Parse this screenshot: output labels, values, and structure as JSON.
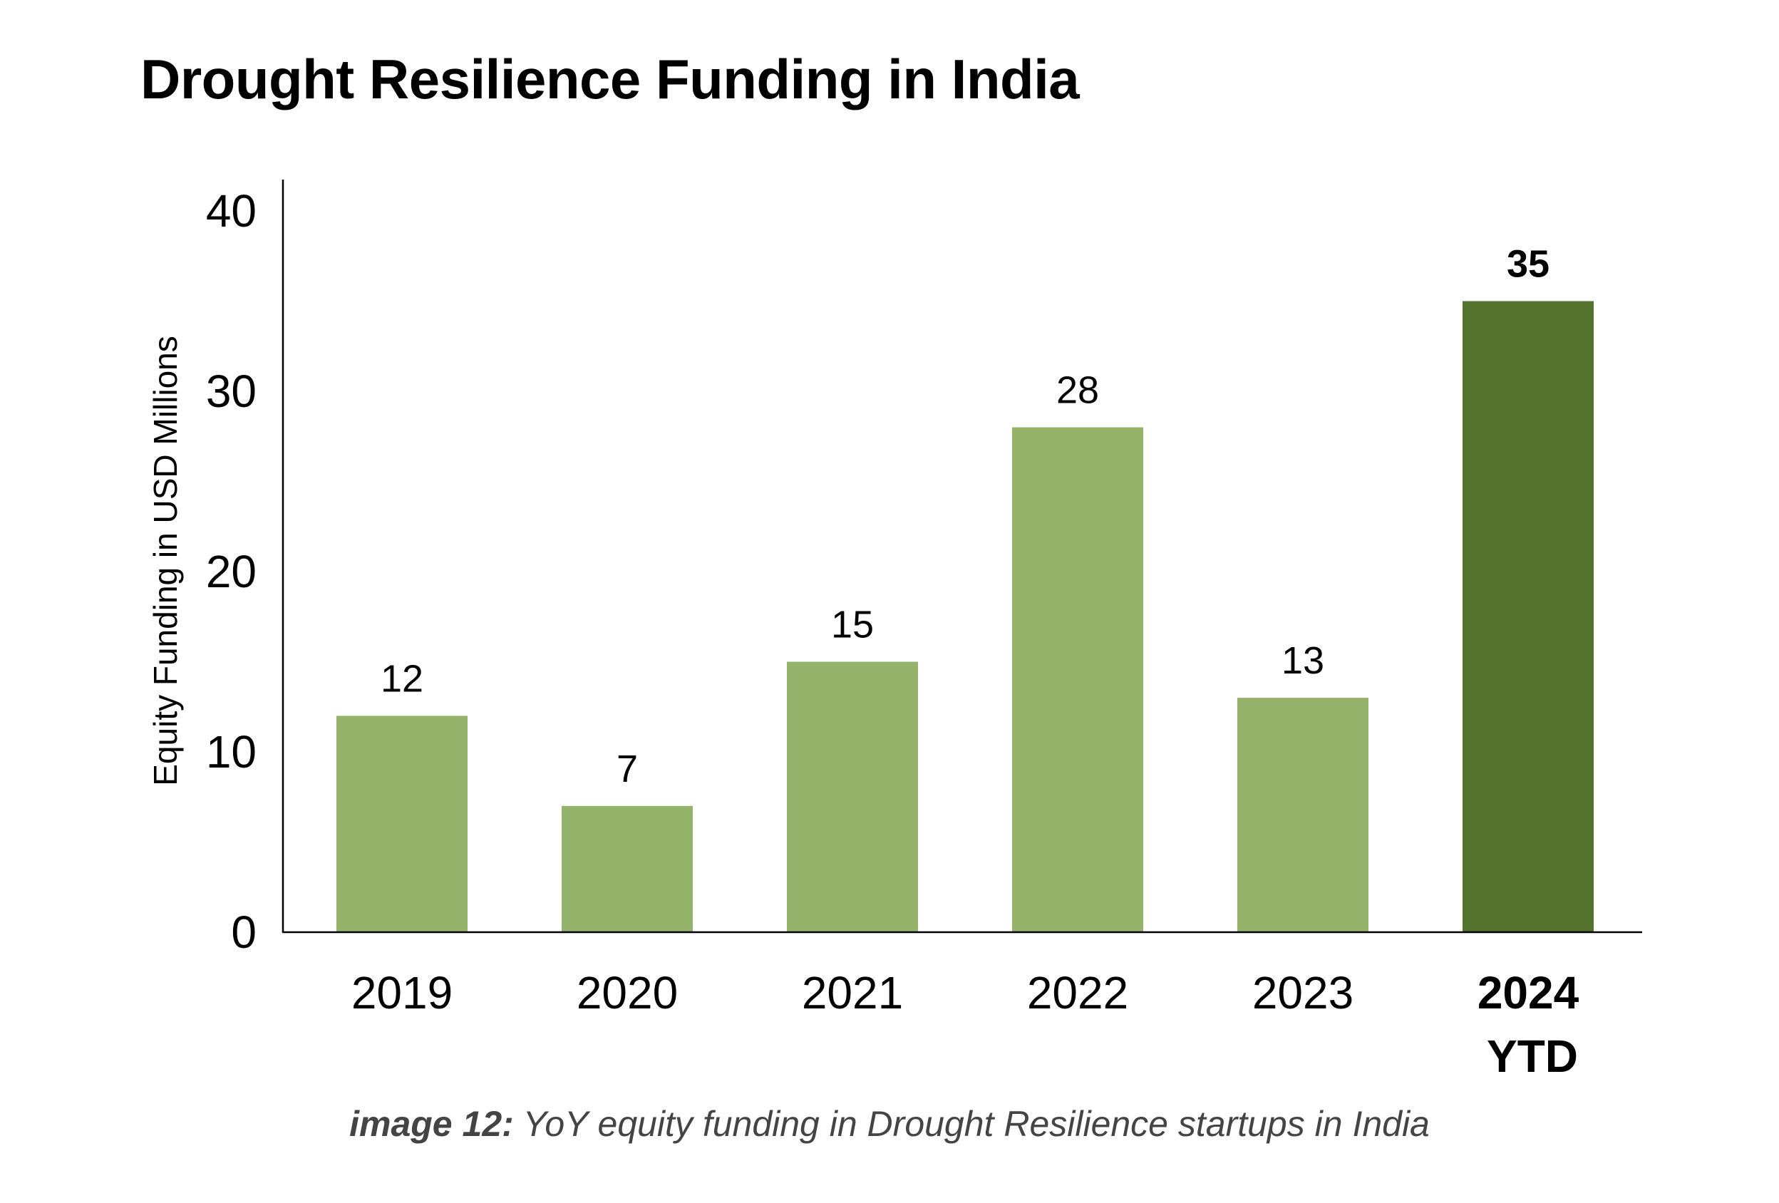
{
  "chart_data": {
    "type": "bar",
    "title": "Drought Resilience Funding in India",
    "xlabel": "",
    "ylabel": "Equity Funding in USD Millions",
    "ylim": [
      0,
      40
    ],
    "yticks": [
      0,
      10,
      20,
      30,
      40
    ],
    "grid": false,
    "legend": null,
    "categories": [
      {
        "label": "2019",
        "label_line2": "",
        "bold": false
      },
      {
        "label": "2020",
        "label_line2": "",
        "bold": false
      },
      {
        "label": "2021",
        "label_line2": "",
        "bold": false
      },
      {
        "label": "2022",
        "label_line2": "",
        "bold": false
      },
      {
        "label": "2023",
        "label_line2": "",
        "bold": false
      },
      {
        "label": "2024",
        "label_line2": "YTD",
        "bold": true
      }
    ],
    "values": [
      12,
      7,
      15,
      28,
      13,
      35
    ],
    "data_labels": [
      "12",
      "7",
      "15",
      "28",
      "13",
      "35"
    ],
    "highlight_index": 5,
    "colors": {
      "bar": "#96B36B",
      "bar_highlight": "#55732D",
      "axis": "#000000",
      "text": "#000000"
    }
  },
  "caption": {
    "label": "image 12:",
    "text": " YoY equity funding in Drought Resilience startups in India"
  }
}
